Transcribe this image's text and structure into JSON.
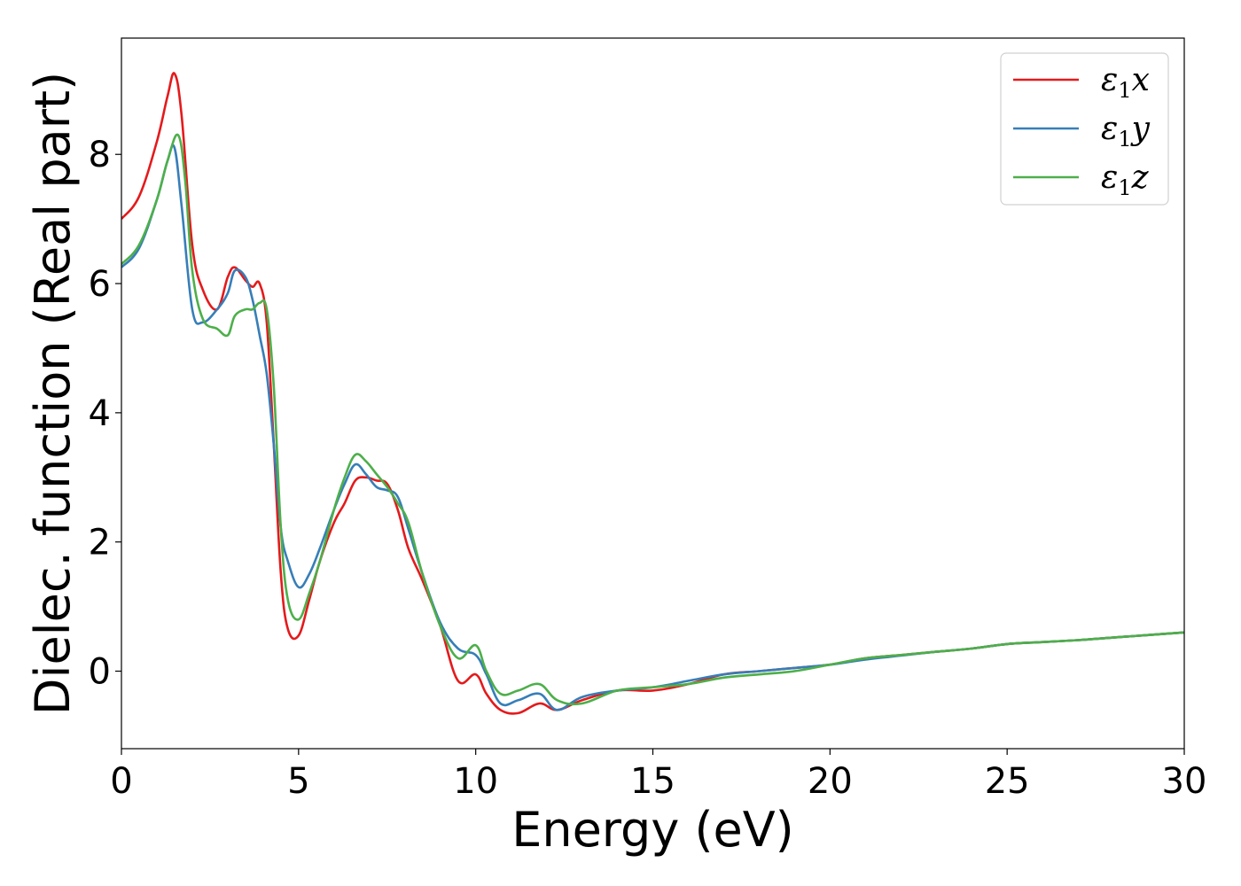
{
  "chart_data": {
    "type": "line",
    "xlabel": "Energy (eV)",
    "ylabel": "Dielec. function (Real part)",
    "xlim": [
      0,
      30
    ],
    "ylim": [
      -1.2,
      9.8
    ],
    "xticks": [
      0,
      5,
      10,
      15,
      20,
      25,
      30
    ],
    "yticks": [
      0,
      2,
      4,
      6,
      8
    ],
    "grid": false,
    "legend_position": "top-right",
    "series": [
      {
        "name": "ε1x",
        "legend_symbol": "ε",
        "legend_sub": "1",
        "legend_var": "x",
        "color": "#e41a1c",
        "x": [
          0,
          0.5,
          1.0,
          1.3,
          1.5,
          1.7,
          2.0,
          2.3,
          2.7,
          3.0,
          3.2,
          3.5,
          3.7,
          3.9,
          4.1,
          4.3,
          4.5,
          4.7,
          5.0,
          5.3,
          5.6,
          6.0,
          6.3,
          6.6,
          6.9,
          7.2,
          7.5,
          7.8,
          8.1,
          8.5,
          9.0,
          9.5,
          10.0,
          10.3,
          10.7,
          11.2,
          11.8,
          12.3,
          13.0,
          14.0,
          15.0,
          16.0,
          17.0,
          18.0,
          19.0,
          20.0,
          21.0,
          22.0,
          23.0,
          24.0,
          25.0,
          26.0,
          27.0,
          28.0,
          29.0,
          30.0
        ],
        "y": [
          7.0,
          7.35,
          8.2,
          8.9,
          9.25,
          8.6,
          6.6,
          5.9,
          5.6,
          6.1,
          6.25,
          6.05,
          5.95,
          6.0,
          5.4,
          3.5,
          1.5,
          0.65,
          0.55,
          1.1,
          1.7,
          2.3,
          2.6,
          2.95,
          3.0,
          2.95,
          2.9,
          2.5,
          1.9,
          1.4,
          0.7,
          -0.15,
          -0.05,
          -0.35,
          -0.6,
          -0.65,
          -0.5,
          -0.6,
          -0.45,
          -0.3,
          -0.3,
          -0.2,
          -0.05,
          0.0,
          0.05,
          0.1,
          0.2,
          0.25,
          0.3,
          0.35,
          0.42,
          0.45,
          0.48,
          0.52,
          0.56,
          0.6
        ]
      },
      {
        "name": "ε1y",
        "legend_symbol": "ε",
        "legend_sub": "1",
        "legend_var": "y",
        "color": "#377eb8",
        "x": [
          0,
          0.5,
          1.0,
          1.3,
          1.5,
          1.7,
          2.0,
          2.3,
          2.7,
          3.0,
          3.2,
          3.5,
          3.7,
          3.9,
          4.1,
          4.3,
          4.5,
          4.7,
          5.0,
          5.3,
          5.6,
          6.0,
          6.3,
          6.6,
          6.9,
          7.2,
          7.5,
          7.8,
          8.1,
          8.5,
          9.0,
          9.5,
          10.0,
          10.3,
          10.7,
          11.2,
          11.8,
          12.3,
          13.0,
          14.0,
          15.0,
          16.0,
          17.0,
          18.0,
          19.0,
          20.0,
          21.0,
          22.0,
          23.0,
          24.0,
          25.0,
          26.0,
          27.0,
          28.0,
          29.0,
          30.0
        ],
        "y": [
          6.25,
          6.55,
          7.3,
          7.9,
          8.1,
          7.2,
          5.6,
          5.4,
          5.6,
          5.85,
          6.2,
          6.1,
          5.75,
          5.2,
          4.6,
          3.5,
          2.2,
          1.7,
          1.3,
          1.5,
          1.9,
          2.5,
          2.9,
          3.2,
          3.05,
          2.85,
          2.8,
          2.7,
          2.2,
          1.5,
          0.75,
          0.35,
          0.25,
          -0.05,
          -0.5,
          -0.45,
          -0.35,
          -0.6,
          -0.4,
          -0.3,
          -0.25,
          -0.15,
          -0.05,
          0.0,
          0.05,
          0.1,
          0.18,
          0.24,
          0.3,
          0.35,
          0.42,
          0.45,
          0.48,
          0.52,
          0.56,
          0.6
        ]
      },
      {
        "name": "ε1z",
        "legend_symbol": "ε",
        "legend_sub": "1",
        "legend_var": "z",
        "color": "#4daf4a",
        "x": [
          0,
          0.5,
          1.0,
          1.3,
          1.6,
          1.8,
          2.0,
          2.3,
          2.7,
          3.0,
          3.2,
          3.5,
          3.7,
          3.9,
          4.1,
          4.3,
          4.5,
          4.7,
          5.0,
          5.3,
          5.6,
          6.0,
          6.3,
          6.6,
          6.9,
          7.2,
          7.5,
          7.8,
          8.1,
          8.5,
          9.0,
          9.5,
          10.0,
          10.3,
          10.7,
          11.2,
          11.8,
          12.3,
          13.0,
          14.0,
          15.0,
          16.0,
          17.0,
          18.0,
          19.0,
          20.0,
          21.0,
          22.0,
          23.0,
          24.0,
          25.0,
          26.0,
          27.0,
          28.0,
          29.0,
          30.0
        ],
        "y": [
          6.3,
          6.6,
          7.3,
          7.9,
          8.3,
          7.6,
          6.2,
          5.45,
          5.3,
          5.2,
          5.5,
          5.6,
          5.6,
          5.7,
          5.6,
          4.4,
          2.2,
          1.1,
          0.8,
          1.2,
          1.7,
          2.5,
          3.0,
          3.35,
          3.25,
          3.05,
          2.85,
          2.6,
          2.3,
          1.5,
          0.7,
          0.2,
          0.4,
          0.0,
          -0.35,
          -0.3,
          -0.2,
          -0.45,
          -0.5,
          -0.3,
          -0.25,
          -0.2,
          -0.1,
          -0.05,
          0.0,
          0.1,
          0.2,
          0.25,
          0.3,
          0.35,
          0.42,
          0.45,
          0.48,
          0.52,
          0.56,
          0.6
        ]
      }
    ]
  }
}
